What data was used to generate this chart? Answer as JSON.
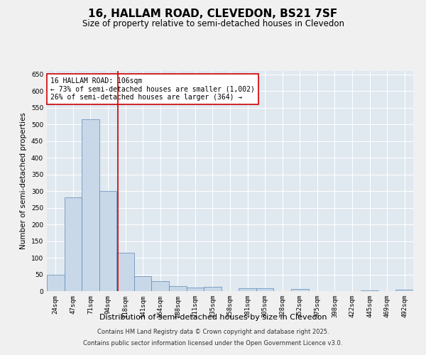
{
  "title_line1": "16, HALLAM ROAD, CLEVEDON, BS21 7SF",
  "title_line2": "Size of property relative to semi-detached houses in Clevedon",
  "xlabel": "Distribution of semi-detached houses by size in Clevedon",
  "ylabel": "Number of semi-detached properties",
  "categories": [
    "24sqm",
    "47sqm",
    "71sqm",
    "94sqm",
    "118sqm",
    "141sqm",
    "164sqm",
    "188sqm",
    "211sqm",
    "235sqm",
    "258sqm",
    "281sqm",
    "305sqm",
    "328sqm",
    "352sqm",
    "375sqm",
    "398sqm",
    "422sqm",
    "445sqm",
    "469sqm",
    "492sqm"
  ],
  "values": [
    50,
    280,
    515,
    300,
    115,
    45,
    30,
    15,
    10,
    12,
    1,
    8,
    8,
    1,
    6,
    1,
    1,
    0,
    3,
    1,
    5
  ],
  "bar_color": "#c8d8e8",
  "bar_edge_color": "#5a8ab5",
  "line_x_index": 3.55,
  "line_color": "#cc0000",
  "annotation_text": "16 HALLAM ROAD: 106sqm\n← 73% of semi-detached houses are smaller (1,002)\n26% of semi-detached houses are larger (364) →",
  "annotation_box_color": "#ffffff",
  "annotation_box_edge_color": "#cc0000",
  "ylim": [
    0,
    660
  ],
  "yticks": [
    0,
    50,
    100,
    150,
    200,
    250,
    300,
    350,
    400,
    450,
    500,
    550,
    600,
    650
  ],
  "background_color": "#e0e8f0",
  "fig_background_color": "#f0f0f0",
  "footer_line1": "Contains HM Land Registry data © Crown copyright and database right 2025.",
  "footer_line2": "Contains public sector information licensed under the Open Government Licence v3.0.",
  "title_fontsize": 11,
  "subtitle_fontsize": 8.5,
  "axis_label_fontsize": 7.5,
  "tick_fontsize": 6.5,
  "annotation_fontsize": 7,
  "footer_fontsize": 6
}
